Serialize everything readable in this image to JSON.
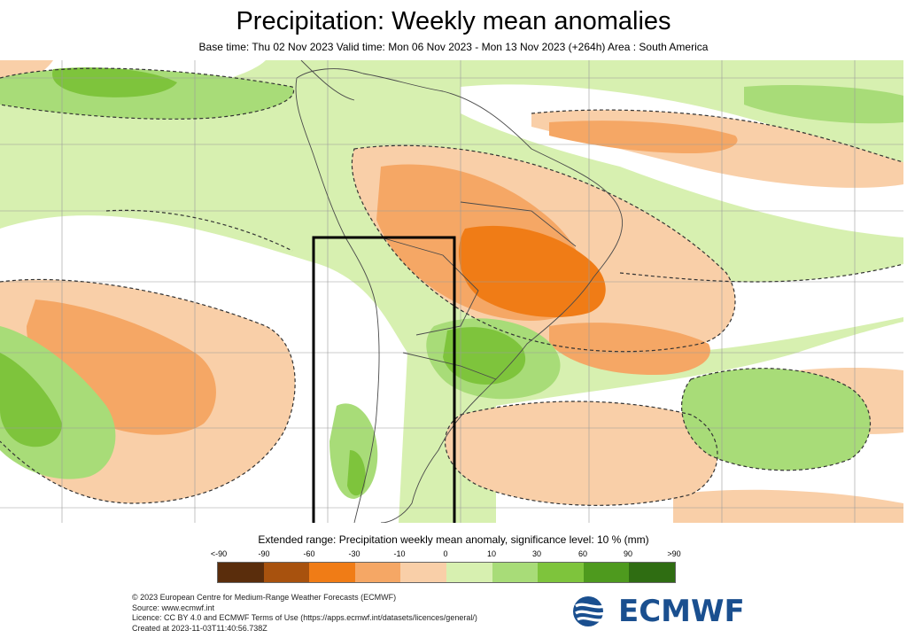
{
  "header": {
    "title": "Precipitation: Weekly mean anomalies",
    "subtitle": "Base time: Thu 02 Nov 2023 Valid time: Mon 06 Nov 2023 - Mon 13 Nov 2023 (+264h) Area : South America"
  },
  "legend": {
    "title": "Extended range: Precipitation weekly mean anomaly, significance level: 10 % (mm)",
    "ticks": [
      "<-90",
      "-90",
      "-60",
      "-30",
      "-10",
      "0",
      "10",
      "30",
      "60",
      "90",
      ">90"
    ],
    "colors": [
      "#5a2d0c",
      "#a8520e",
      "#f07c16",
      "#f5a765",
      "#f9cfa8",
      "#ffffff",
      "#d7f0b0",
      "#a8dc78",
      "#7ec43c",
      "#4e9a1e",
      "#2f6d12"
    ]
  },
  "credits": {
    "copyright": "© 2023 European Centre for Medium-Range Weather Forecasts (ECMWF)",
    "source": "Source: www.ecmwf.int",
    "licence": "Licence: CC BY 4.0 and ECMWF Terms of Use (https://apps.ecmwf.int/datasets/licences/general/)",
    "created": "Created at 2023-11-03T11:40:56.738Z"
  },
  "logo": {
    "text": "ECMWF",
    "color": "#1a4f8f"
  }
}
